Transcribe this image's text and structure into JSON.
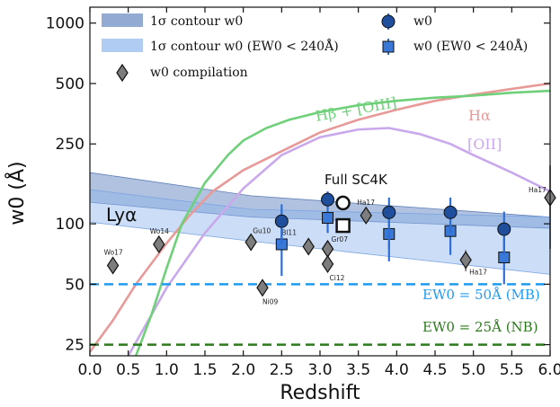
{
  "colors": {
    "w0_marker": "#1f4e9c",
    "w0_errbar": "#2e6fd6",
    "ewcut_marker": "#3a78d8",
    "compilation_marker": "#7d7d7d",
    "contour_all": "#6f8fc4",
    "contour_cut": "#8fb6ee",
    "hbeta": "#6fd07a",
    "halpha": "#e79a98",
    "oii": "#c9a8ec",
    "mb_line": "#1f9bf0",
    "nb_line": "#2c7a1c"
  },
  "chart_data": {
    "type": "scatter",
    "xlabel": "Redshift",
    "ylabel": "w0 (Å)",
    "xlim": [
      0.0,
      6.0
    ],
    "ylim": [
      22,
      1200
    ],
    "yscale": "log",
    "x_ticks": [
      "0.0",
      "0.5",
      "1.0",
      "1.5",
      "2.0",
      "2.5",
      "3.0",
      "3.5",
      "4.0",
      "4.5",
      "5.0",
      "5.5",
      "6.0"
    ],
    "y_ticks": [
      "25",
      "50",
      "100",
      "250",
      "500",
      "1000"
    ],
    "y_tick_values": [
      25,
      50,
      100,
      250,
      500,
      1000
    ],
    "legend": {
      "contour_all": "1σ contour w0",
      "contour_cut": "1σ contour w0 (EW0 < 240Å)",
      "compilation": "w0 compilation",
      "w0": "w0",
      "w0_cut": "w0 (EW0 < 240Å)"
    },
    "series": [
      {
        "name": "w0",
        "marker": "circle",
        "points": [
          {
            "x": 2.5,
            "y": 103,
            "lo": 80,
            "hi": 125
          },
          {
            "x": 3.1,
            "y": 132,
            "lo": 118,
            "hi": 145
          },
          {
            "x": 3.9,
            "y": 114,
            "lo": 75,
            "hi": 135
          },
          {
            "x": 4.7,
            "y": 114,
            "lo": 90,
            "hi": 135
          },
          {
            "x": 5.4,
            "y": 94,
            "lo": 70,
            "hi": 115
          }
        ]
      },
      {
        "name": "w0 (EW0 < 240Å)",
        "marker": "square",
        "points": [
          {
            "x": 2.5,
            "y": 79,
            "lo": 55,
            "hi": 95
          },
          {
            "x": 3.1,
            "y": 107,
            "lo": 90,
            "hi": 118
          },
          {
            "x": 3.9,
            "y": 89,
            "lo": 65,
            "hi": 110
          },
          {
            "x": 4.7,
            "y": 92,
            "lo": 70,
            "hi": 110
          },
          {
            "x": 5.4,
            "y": 68,
            "lo": 50,
            "hi": 85
          }
        ]
      },
      {
        "name": "w0 compilation",
        "marker": "diamond",
        "points": [
          {
            "x": 0.3,
            "y": 62,
            "label": "Wo17"
          },
          {
            "x": 0.9,
            "y": 79,
            "label": "Wo14"
          },
          {
            "x": 2.1,
            "y": 81,
            "label": "Gu10"
          },
          {
            "x": 2.25,
            "y": 48,
            "label": "Ni09"
          },
          {
            "x": 2.85,
            "y": 77,
            "label": "Bl11"
          },
          {
            "x": 3.1,
            "y": 75,
            "label": "Gr07"
          },
          {
            "x": 3.1,
            "y": 63,
            "label": "Ci12"
          },
          {
            "x": 3.6,
            "y": 110,
            "label": "Ha17"
          },
          {
            "x": 4.9,
            "y": 66,
            "label": "Ha17",
            "lo": 58,
            "hi": 74
          },
          {
            "x": 6.0,
            "y": 135,
            "label": "Ha17",
            "lo": 75,
            "hi": 195
          }
        ]
      },
      {
        "name": "Full SC4K",
        "markers": [
          {
            "x": 3.3,
            "y": 127,
            "marker": "open-circle"
          },
          {
            "x": 3.3,
            "y": 98,
            "marker": "open-square"
          }
        ]
      },
      {
        "name": "1σ contour w0",
        "type": "area",
        "x": [
          0.0,
          2.1,
          6.0
        ],
        "upper": [
          180,
          138,
          108
        ],
        "lower": [
          128,
          108,
          95
        ]
      },
      {
        "name": "1σ contour w0 (EW0 < 240Å)",
        "type": "area",
        "x": [
          0.0,
          2.1,
          6.0
        ],
        "upper": [
          148,
          118,
          108
        ],
        "lower": [
          102,
          82,
          56
        ]
      },
      {
        "name": "Hβ + [OIII]",
        "type": "line",
        "x": [
          0.6,
          0.8,
          1.0,
          1.2,
          1.5,
          1.8,
          2.0,
          2.3,
          2.6,
          3.0,
          3.5,
          4.0,
          4.5,
          5.0,
          5.5,
          6.0
        ],
        "y": [
          22,
          35,
          60,
          100,
          160,
          220,
          260,
          300,
          330,
          360,
          390,
          410,
          425,
          435,
          450,
          460
        ]
      },
      {
        "name": "Hα",
        "type": "line",
        "x": [
          0.0,
          0.3,
          0.6,
          1.0,
          1.3,
          1.6,
          2.0,
          2.5,
          3.0,
          3.5,
          4.0,
          4.5,
          5.0,
          5.5,
          6.0
        ],
        "y": [
          23,
          33,
          50,
          80,
          110,
          145,
          185,
          230,
          285,
          330,
          370,
          410,
          440,
          470,
          500
        ]
      },
      {
        "name": "[OII]",
        "type": "line",
        "x": [
          0.5,
          0.8,
          1.0,
          1.5,
          2.0,
          2.5,
          3.0,
          3.5,
          3.9,
          4.3,
          4.7,
          5.0,
          5.5,
          6.0
        ],
        "y": [
          22,
          35,
          48,
          90,
          150,
          220,
          270,
          295,
          300,
          280,
          250,
          220,
          180,
          145
        ]
      },
      {
        "name": "EW0 = 50Å (MB)",
        "type": "hline",
        "y": 50
      },
      {
        "name": "EW0 = 25Å (NB)",
        "type": "hline",
        "y": 25
      }
    ],
    "annotations": {
      "lya": "Lyα",
      "hbeta": "Hβ + [OIII]",
      "halpha": "Hα",
      "oii": "[OII]",
      "full_sc4k": "Full SC4K",
      "mb": "EW0 = 50Å (MB)",
      "nb": "EW0 = 25Å (NB)"
    }
  }
}
